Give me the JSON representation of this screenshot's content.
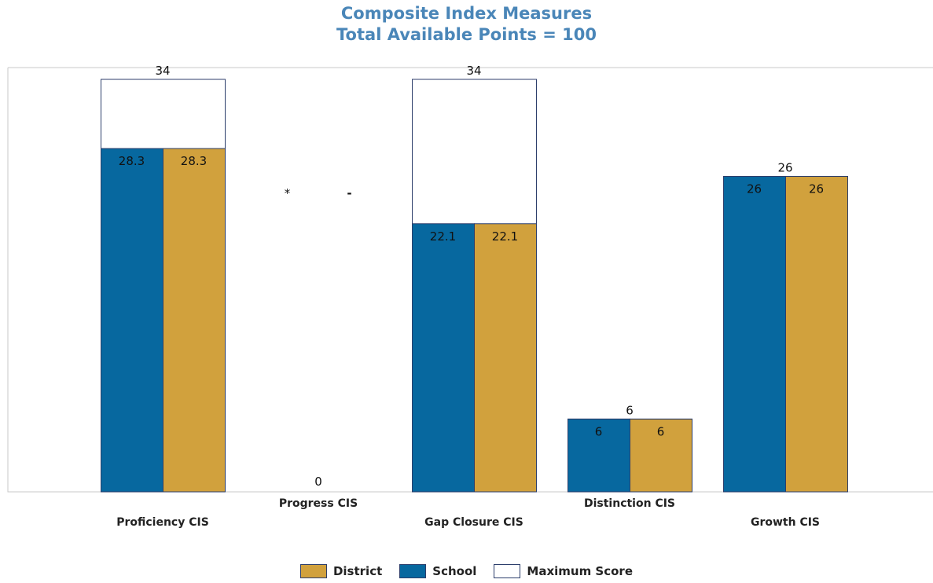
{
  "chart_data": {
    "type": "bar",
    "title": "Composite Index Measures",
    "subtitle": "Total Available Points = 100",
    "categories": [
      "Proficiency CIS",
      "Progress CIS",
      "Gap Closure CIS",
      "Distinction CIS",
      "Growth CIS"
    ],
    "series": [
      {
        "name": "School",
        "values": [
          28.3,
          null,
          22.1,
          6,
          26
        ],
        "labels": [
          "28.3",
          "*",
          "22.1",
          "6",
          "26"
        ]
      },
      {
        "name": "District",
        "values": [
          28.3,
          null,
          22.1,
          6,
          26
        ],
        "labels": [
          "28.3",
          "-",
          "22.1",
          "6",
          "26"
        ]
      },
      {
        "name": "Maximum Score",
        "values": [
          34,
          0,
          34,
          6,
          26
        ],
        "labels": [
          "34",
          "0",
          "34",
          "6",
          "26"
        ]
      }
    ],
    "ylim": [
      0,
      34
    ],
    "grid": false,
    "legend_position": "bottom",
    "colors": {
      "School": "#07689f",
      "District": "#d1a13d",
      "Maximum Score": "#ffffff",
      "outline": "#2c3e6b",
      "title": "#4a86b8"
    }
  },
  "legend": [
    {
      "label": "District",
      "color": "#d1a13d"
    },
    {
      "label": "School",
      "color": "#07689f"
    },
    {
      "label": "Maximum Score",
      "color": "#ffffff"
    }
  ]
}
